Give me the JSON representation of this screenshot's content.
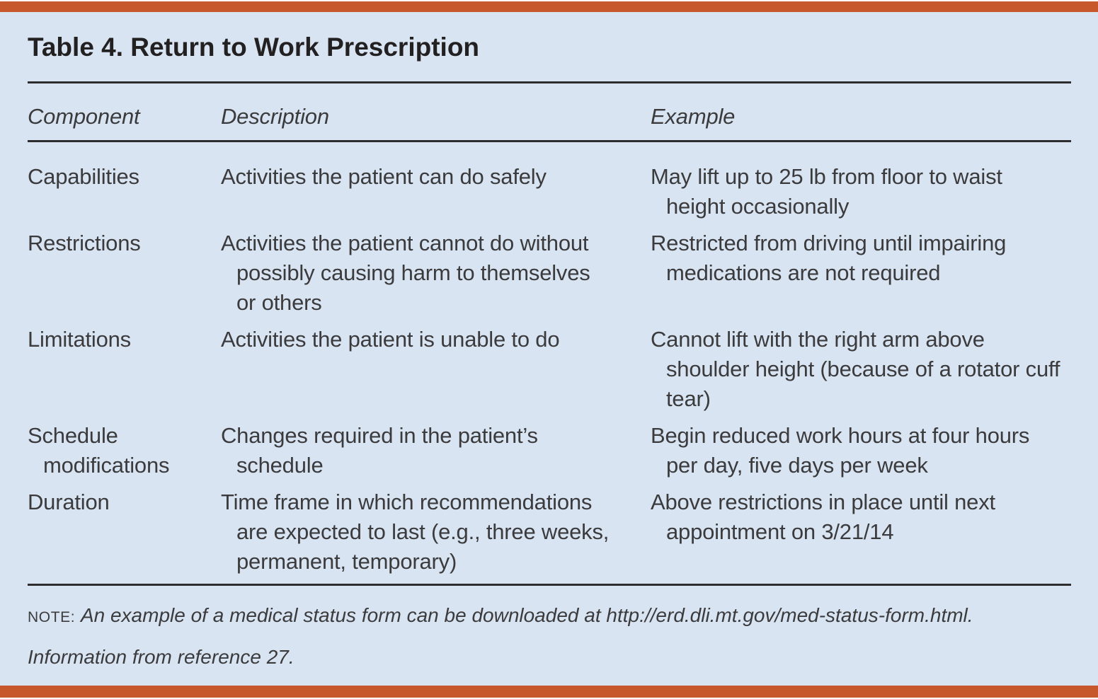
{
  "theme": {
    "accent_color": "#C7582C",
    "panel_color": "#D8E4F1",
    "text_color": "#3B3B3D",
    "title_color": "#232021",
    "rule_color": "#2D2D2F"
  },
  "table": {
    "title": "Table 4. Return to Work Prescription",
    "columns": [
      "Component",
      "Description",
      "Example"
    ],
    "rows": [
      {
        "component": "Capabilities",
        "description": "Activities the patient can do safely",
        "example": "May lift up to 25 lb from floor to waist height occasionally"
      },
      {
        "component": "Restrictions",
        "description": "Activities the patient cannot do without possibly causing harm to themselves or others",
        "example": "Restricted from driving until impairing medications are not required"
      },
      {
        "component": "Limitations",
        "description": "Activities the patient is unable to do",
        "example": "Cannot lift with the right arm above shoulder height (because of a rotator cuff tear)"
      },
      {
        "component": "Schedule modifications",
        "description": "Changes required in the patient’s schedule",
        "example": "Begin reduced work hours at four hours per day, five days per week"
      },
      {
        "component": "Duration",
        "description": "Time frame in which recommendations are expected to last (e.g., three weeks, permanent, temporary)",
        "example": "Above restrictions in place until next appointment on 3/21/14"
      }
    ]
  },
  "footer": {
    "note_label": "NOTE:",
    "note_text": "An example of a medical status form can be downloaded at http://erd.dli.mt.gov/med-status-form.html.",
    "attribution": "Information from reference 27."
  }
}
